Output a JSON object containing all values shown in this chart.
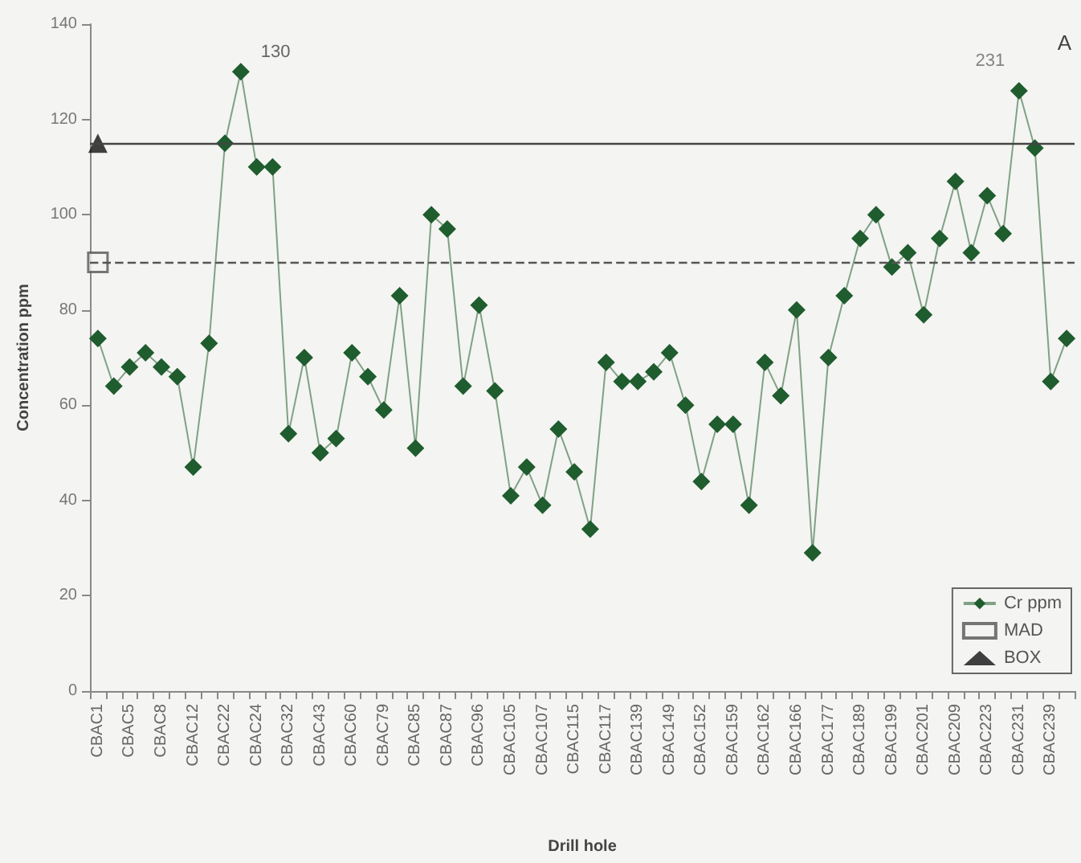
{
  "chart_data": {
    "type": "line",
    "xlabel": "Drill hole",
    "ylabel": "Concentration ppm",
    "categories": [
      "CBAC1",
      null,
      "CBAC5",
      null,
      "CBAC8",
      null,
      "CBAC12",
      null,
      "CBAC22",
      null,
      "CBAC24",
      null,
      "CBAC32",
      null,
      "CBAC43",
      null,
      "CBAC60",
      null,
      "CBAC79",
      null,
      "CBAC85",
      null,
      "CBAC87",
      null,
      "CBAC96",
      null,
      "CBAC105",
      null,
      "CBAC107",
      null,
      "CBAC115",
      null,
      "CBAC117",
      null,
      "CBAC139",
      null,
      "CBAC149",
      null,
      "CBAC152",
      null,
      "CBAC159",
      null,
      "CBAC162",
      null,
      "CBAC166",
      null,
      "CBAC177",
      null,
      "CBAC189",
      null,
      "CBAC199",
      null,
      "CBAC201",
      null,
      "CBAC209",
      null,
      "CBAC223",
      null,
      "CBAC231",
      null,
      "CBAC239",
      null
    ],
    "series": [
      {
        "name": "Cr ppm",
        "color": "#1f5c2e",
        "marker": "diamond",
        "values": [
          74,
          64,
          68,
          71,
          68,
          66,
          47,
          73,
          115,
          130,
          110,
          110,
          54,
          70,
          50,
          53,
          71,
          66,
          59,
          83,
          51,
          100,
          97,
          64,
          81,
          63,
          41,
          47,
          39,
          55,
          46,
          34,
          69,
          65,
          65,
          67,
          71,
          60,
          44,
          56,
          56,
          39,
          69,
          62,
          80,
          29,
          70,
          83,
          95,
          100,
          89,
          92,
          79,
          95,
          107,
          92,
          104,
          96,
          126,
          114,
          65,
          74
        ],
        "value_labels": [
          null,
          null,
          null,
          null,
          null,
          null,
          null,
          null,
          null,
          "130",
          null,
          null,
          null,
          null,
          null,
          null,
          null,
          null,
          null,
          null,
          null,
          null,
          null,
          null,
          null,
          null,
          null,
          null,
          null,
          null,
          null,
          null,
          null,
          null,
          null,
          null,
          null,
          null,
          null,
          null,
          null,
          null,
          null,
          null,
          null,
          null,
          null,
          null,
          null,
          null,
          null,
          null,
          null,
          null,
          null,
          null,
          null,
          null,
          null,
          null,
          null,
          null
        ]
      },
      {
        "name": "MAD",
        "type": "scatter",
        "color": "#555555",
        "marker": "square",
        "x": [
          "CBAC1"
        ],
        "values": [
          90
        ]
      },
      {
        "name": "BOX",
        "type": "scatter",
        "color": "#111111",
        "marker": "triangle",
        "x": [
          "CBAC1"
        ],
        "values": [
          115
        ]
      }
    ],
    "ref_lines": [
      {
        "axis": "y",
        "value": 115,
        "color": "#444444",
        "line_style": "solid"
      },
      {
        "axis": "y",
        "value": 90,
        "color": "#555555",
        "line_style": "dashed"
      }
    ],
    "annotations": [
      {
        "text": "231",
        "x": "CBAC231",
        "y": 126
      },
      "A"
    ],
    "ylim": [
      0,
      140
    ],
    "yticks": [
      0,
      20,
      40,
      60,
      80,
      100,
      120,
      140
    ],
    "legend": "bottom right",
    "grid": false
  }
}
